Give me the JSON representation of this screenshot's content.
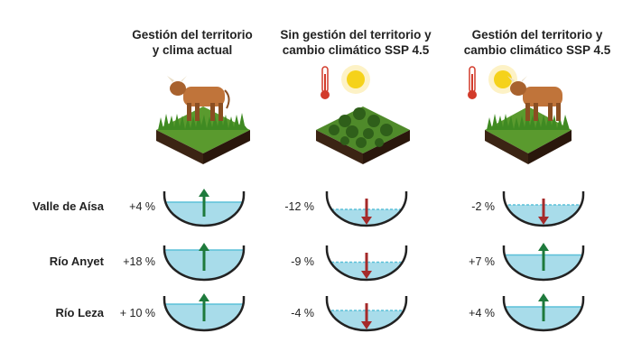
{
  "columns": [
    {
      "title_line1": "Gestión del territorio",
      "title_line2": "y clima actual",
      "scene": "cow-on-grass"
    },
    {
      "title_line1": "Sin gestión del territorio y",
      "title_line2": "cambio climático SSP 4.5",
      "scene": "shrubs-thermometer-sun"
    },
    {
      "title_line1": "Gestión del territorio y",
      "title_line2": "cambio climático SSP 4.5",
      "scene": "cow-on-grass-thermometer-sun"
    }
  ],
  "rows": [
    {
      "label": "Valle de Aísa",
      "values": [
        {
          "text": "+4 %",
          "change": 4,
          "direction": "up"
        },
        {
          "text": "-12 %",
          "change": -12,
          "direction": "down"
        },
        {
          "text": "-2 %",
          "change": -2,
          "direction": "down"
        }
      ]
    },
    {
      "label": "Río Anyet",
      "values": [
        {
          "text": "+18 %",
          "change": 18,
          "direction": "up"
        },
        {
          "text": "-9 %",
          "change": -9,
          "direction": "down"
        },
        {
          "text": "+7 %",
          "change": 7,
          "direction": "up"
        }
      ]
    },
    {
      "label": "Río Leza",
      "values": [
        {
          "text": "+ 10 %",
          "change": 10,
          "direction": "up"
        },
        {
          "text": "-4 %",
          "change": -4,
          "direction": "down"
        },
        {
          "text": "+4 %",
          "change": 4,
          "direction": "up"
        }
      ]
    }
  ],
  "colors": {
    "water": "#a8dcea",
    "water_line": "#5bc0d8",
    "up_arrow": "#1e7a3c",
    "down_arrow": "#a52a2a",
    "basin_outline": "#222222",
    "grass": "#5a9a2e",
    "soil": "#3b2414",
    "cow": "#c0743a",
    "sun": "#f5d21a",
    "thermometer": "#d23a2a"
  }
}
